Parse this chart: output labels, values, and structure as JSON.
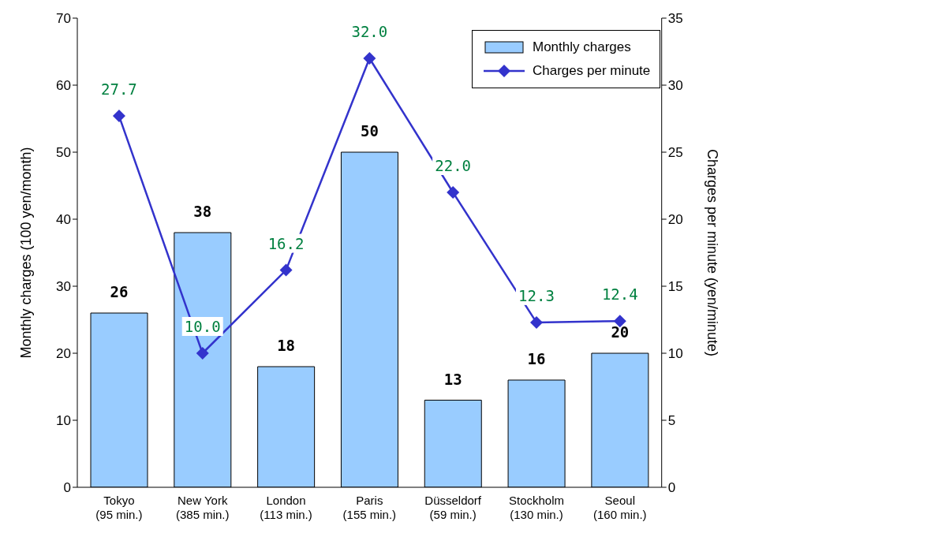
{
  "chart_data": {
    "type": "bar",
    "categories": [
      "Tokyo\n(95 min.)",
      "New York\n(385 min.)",
      "London\n(113 min.)",
      "Paris\n(155 min.)",
      "Düsseldorf\n(59 min.)",
      "Stockholm\n(130 min.)",
      "Seoul\n(160 min.)"
    ],
    "series": [
      {
        "name": "Monthly charges",
        "color": "#99ccff",
        "values": [
          26,
          38,
          18,
          50,
          13,
          16,
          20
        ],
        "value_labels": [
          "26",
          "38",
          "18",
          "50",
          "13",
          "16",
          "20"
        ]
      },
      {
        "name": "Charges per minute",
        "type": "line",
        "axis": "y2",
        "color": "#3333cc",
        "values": [
          27.7,
          10.0,
          16.2,
          32.0,
          22.0,
          12.3,
          12.4
        ],
        "value_labels": [
          "27.7",
          "10.0",
          "16.2",
          "32.0",
          "22.0",
          "12.3",
          "12.4"
        ]
      }
    ],
    "ylabel": "Monthly charges (100 yen/month)",
    "y2label": "Charges per minute (yen/minute)",
    "ylim": [
      0,
      70
    ],
    "yticks": [
      0,
      10,
      20,
      30,
      40,
      50,
      60,
      70
    ],
    "y2lim": [
      0,
      35
    ],
    "y2ticks": [
      0,
      5,
      10,
      15,
      20,
      25,
      30,
      35
    ],
    "grid": false,
    "legend": "top right",
    "marker": "diamond",
    "line_style": "solid"
  }
}
